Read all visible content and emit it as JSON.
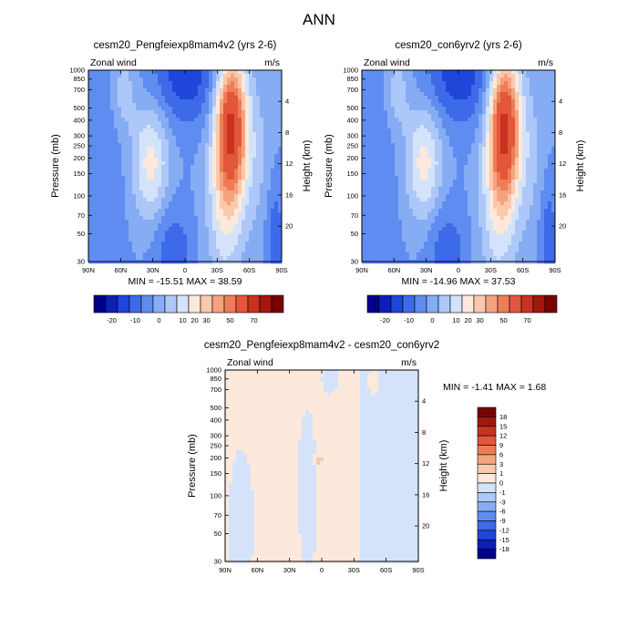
{
  "figure_title": "ANN",
  "colors": {
    "frame": "#000000",
    "nans": "#ffffff"
  },
  "chart_data": [
    {
      "type": "heatmap",
      "subtitle": "cesm20_Pengfeiexp8mam4v2 (yrs 2-6)",
      "left_label": "Zonal wind",
      "right_label": "m/s",
      "ylabel": "Pressure (mb)",
      "y2label": "Height (km)",
      "x_ticks": [
        "90N",
        "60N",
        "30N",
        "0",
        "30S",
        "60S",
        "90S"
      ],
      "y_ticks": [
        "30",
        "50",
        "70",
        "100",
        "150",
        "200",
        "250",
        "300",
        "400",
        "500",
        "700",
        "850",
        "1000"
      ],
      "height_ticks": [
        "20",
        "16",
        "12",
        "8",
        "4"
      ],
      "stats": "MIN = -15.51  MAX =  38.59",
      "min": -15.51,
      "max": 38.59,
      "scale": "main",
      "ylog": true,
      "yrange": [
        1000,
        30
      ]
    },
    {
      "type": "heatmap",
      "subtitle": "cesm20_con6yrv2 (yrs 2-6)",
      "left_label": "Zonal wind",
      "right_label": "m/s",
      "ylabel": "Pressure (mb)",
      "y2label": "Height (km)",
      "x_ticks": [
        "90N",
        "60N",
        "30N",
        "0",
        "30S",
        "60S",
        "90S"
      ],
      "y_ticks": [
        "30",
        "50",
        "70",
        "100",
        "150",
        "200",
        "250",
        "300",
        "400",
        "500",
        "700",
        "850",
        "1000"
      ],
      "height_ticks": [
        "20",
        "16",
        "12",
        "8",
        "4"
      ],
      "stats": "MIN = -14.96  MAX =  37.53",
      "min": -14.96,
      "max": 37.53,
      "scale": "main",
      "ylog": true,
      "yrange": [
        1000,
        30
      ]
    },
    {
      "type": "heatmap",
      "subtitle": "cesm20_Pengfeiexp8mam4v2 - cesm20_con6yrv2",
      "left_label": "Zonal wind",
      "right_label": "m/s",
      "ylabel": "Pressure (mb)",
      "y2label": "Height (km)",
      "x_ticks": [
        "90N",
        "60N",
        "30N",
        "0",
        "30S",
        "60S",
        "90S"
      ],
      "y_ticks": [
        "30",
        "50",
        "70",
        "100",
        "150",
        "200",
        "250",
        "300",
        "400",
        "500",
        "700",
        "850",
        "1000"
      ],
      "height_ticks": [
        "20",
        "16",
        "12",
        "8",
        "4"
      ],
      "stats": "MIN = -1.41  MAX =  1.68",
      "min": -1.41,
      "max": 1.68,
      "scale": "diff",
      "ylog": true,
      "yrange": [
        1000,
        30
      ]
    }
  ],
  "colorbars": {
    "main": {
      "orientation": "horizontal",
      "labels": [
        "-20",
        "-10",
        "0",
        "10",
        "20",
        "30",
        "50",
        "70"
      ],
      "colors": [
        "#00008a",
        "#0a1fb8",
        "#1f45d9",
        "#3d6ae8",
        "#5e8cf0",
        "#86acf4",
        "#adc8f8",
        "#d4e3fa",
        "#fde9db",
        "#fac8ac",
        "#f5a27f",
        "#ee7d57",
        "#e2563a",
        "#c8321f",
        "#a3170f",
        "#7a0403"
      ]
    },
    "diff": {
      "orientation": "vertical",
      "labels": [
        "18",
        "15",
        "12",
        "9",
        "6",
        "3",
        "1",
        "0",
        "-1",
        "-3",
        "-6",
        "-9",
        "-12",
        "-15",
        "-18"
      ],
      "colors": [
        "#7a0403",
        "#a3170f",
        "#c8321f",
        "#e2563a",
        "#ee7d57",
        "#f5a27f",
        "#fac8ac",
        "#fde9db",
        "#d4e3fa",
        "#adc8f8",
        "#86acf4",
        "#5e8cf0",
        "#3d6ae8",
        "#1f45d9",
        "#0a1fb8",
        "#00008a"
      ]
    }
  }
}
